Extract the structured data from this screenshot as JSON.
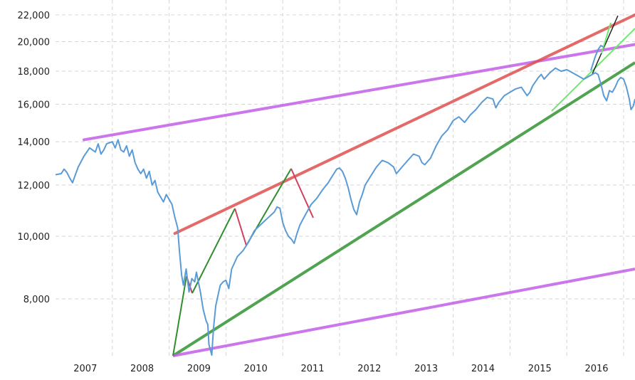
{
  "chart_data": {
    "type": "line",
    "title": "",
    "xlabel": "",
    "ylabel": "",
    "yscale": "log",
    "ylim": [
      6500,
      22500
    ],
    "xlim": [
      2006.5,
      2016.7
    ],
    "grid": true,
    "x_tick_labels": [
      "2007",
      "2008",
      "2009",
      "2010",
      "2011",
      "2012",
      "2013",
      "2014",
      "2015",
      "2016"
    ],
    "y_ticks": [
      8000,
      10000,
      12000,
      14000,
      16000,
      18000,
      20000,
      22000
    ],
    "y_tick_labels": [
      "8,000",
      "10,000",
      "12,000",
      "14,000",
      "16,000",
      "18,000",
      "20,000",
      "22,000"
    ],
    "colors": {
      "price": "#5b9bd5",
      "upper_trend": "#e05050",
      "channel": "#c25fe8",
      "support": "#3e9a3e",
      "swing_up": "#2f8f2f",
      "swing_down": "#d04060",
      "recent_trend": "#6ee86e",
      "grid": "#d6d6d6"
    },
    "series": [
      {
        "role": "price",
        "points": [
          [
            2006.5,
            12450
          ],
          [
            2006.6,
            12500
          ],
          [
            2006.65,
            12700
          ],
          [
            2006.7,
            12550
          ],
          [
            2006.75,
            12300
          ],
          [
            2006.8,
            12100
          ],
          [
            2006.85,
            12450
          ],
          [
            2006.9,
            12800
          ],
          [
            2007.0,
            13300
          ],
          [
            2007.1,
            13700
          ],
          [
            2007.2,
            13500
          ],
          [
            2007.25,
            13900
          ],
          [
            2007.3,
            13400
          ],
          [
            2007.35,
            13600
          ],
          [
            2007.4,
            13900
          ],
          [
            2007.5,
            14000
          ],
          [
            2007.55,
            13700
          ],
          [
            2007.6,
            14100
          ],
          [
            2007.65,
            13600
          ],
          [
            2007.7,
            13500
          ],
          [
            2007.75,
            13800
          ],
          [
            2007.8,
            13300
          ],
          [
            2007.85,
            13600
          ],
          [
            2007.9,
            13000
          ],
          [
            2007.95,
            12700
          ],
          [
            2008.0,
            12500
          ],
          [
            2008.05,
            12700
          ],
          [
            2008.1,
            12300
          ],
          [
            2008.15,
            12600
          ],
          [
            2008.2,
            12000
          ],
          [
            2008.25,
            12200
          ],
          [
            2008.3,
            11700
          ],
          [
            2008.35,
            11500
          ],
          [
            2008.4,
            11300
          ],
          [
            2008.45,
            11600
          ],
          [
            2008.5,
            11400
          ],
          [
            2008.55,
            11200
          ],
          [
            2008.6,
            10700
          ],
          [
            2008.65,
            10300
          ],
          [
            2008.68,
            9500
          ],
          [
            2008.72,
            8700
          ],
          [
            2008.75,
            8400
          ],
          [
            2008.8,
            8900
          ],
          [
            2008.85,
            8200
          ],
          [
            2008.9,
            8600
          ],
          [
            2008.95,
            8500
          ],
          [
            2008.98,
            8800
          ],
          [
            2009.05,
            8200
          ],
          [
            2009.1,
            7700
          ],
          [
            2009.15,
            7400
          ],
          [
            2009.18,
            7300
          ],
          [
            2009.2,
            6800
          ],
          [
            2009.25,
            6550
          ],
          [
            2009.28,
            7200
          ],
          [
            2009.32,
            7800
          ],
          [
            2009.36,
            8100
          ],
          [
            2009.4,
            8400
          ],
          [
            2009.45,
            8500
          ],
          [
            2009.5,
            8550
          ],
          [
            2009.55,
            8300
          ],
          [
            2009.6,
            8900
          ],
          [
            2009.7,
            9300
          ],
          [
            2009.8,
            9500
          ],
          [
            2009.9,
            9800
          ],
          [
            2010.0,
            10200
          ],
          [
            2010.1,
            10400
          ],
          [
            2010.2,
            10600
          ],
          [
            2010.25,
            10700
          ],
          [
            2010.3,
            10800
          ],
          [
            2010.35,
            10900
          ],
          [
            2010.4,
            11100
          ],
          [
            2010.45,
            11050
          ],
          [
            2010.5,
            10500
          ],
          [
            2010.55,
            10200
          ],
          [
            2010.6,
            10000
          ],
          [
            2010.65,
            9900
          ],
          [
            2010.7,
            9750
          ],
          [
            2010.75,
            10100
          ],
          [
            2010.8,
            10400
          ],
          [
            2010.85,
            10600
          ],
          [
            2010.9,
            10800
          ],
          [
            2010.95,
            11000
          ],
          [
            2011.0,
            11200
          ],
          [
            2011.1,
            11450
          ],
          [
            2011.2,
            11800
          ],
          [
            2011.3,
            12100
          ],
          [
            2011.35,
            12300
          ],
          [
            2011.4,
            12500
          ],
          [
            2011.45,
            12700
          ],
          [
            2011.5,
            12750
          ],
          [
            2011.55,
            12600
          ],
          [
            2011.6,
            12300
          ],
          [
            2011.65,
            11900
          ],
          [
            2011.7,
            11400
          ],
          [
            2011.75,
            11000
          ],
          [
            2011.8,
            10800
          ],
          [
            2011.85,
            11300
          ],
          [
            2011.9,
            11600
          ],
          [
            2011.95,
            12000
          ],
          [
            2012.05,
            12400
          ],
          [
            2012.15,
            12800
          ],
          [
            2012.25,
            13100
          ],
          [
            2012.35,
            13000
          ],
          [
            2012.45,
            12800
          ],
          [
            2012.5,
            12500
          ],
          [
            2012.6,
            12800
          ],
          [
            2012.7,
            13100
          ],
          [
            2012.8,
            13400
          ],
          [
            2012.9,
            13300
          ],
          [
            2012.95,
            13000
          ],
          [
            2013.0,
            12900
          ],
          [
            2013.1,
            13200
          ],
          [
            2013.2,
            13800
          ],
          [
            2013.3,
            14300
          ],
          [
            2013.4,
            14600
          ],
          [
            2013.5,
            15100
          ],
          [
            2013.6,
            15300
          ],
          [
            2013.7,
            15000
          ],
          [
            2013.8,
            15400
          ],
          [
            2013.9,
            15700
          ],
          [
            2014.0,
            16100
          ],
          [
            2014.1,
            16400
          ],
          [
            2014.2,
            16300
          ],
          [
            2014.25,
            15800
          ],
          [
            2014.3,
            16100
          ],
          [
            2014.4,
            16500
          ],
          [
            2014.5,
            16700
          ],
          [
            2014.6,
            16900
          ],
          [
            2014.7,
            17000
          ],
          [
            2014.8,
            16500
          ],
          [
            2014.85,
            16700
          ],
          [
            2014.9,
            17100
          ],
          [
            2015.0,
            17600
          ],
          [
            2015.05,
            17800
          ],
          [
            2015.1,
            17500
          ],
          [
            2015.2,
            17900
          ],
          [
            2015.3,
            18200
          ],
          [
            2015.4,
            18000
          ],
          [
            2015.5,
            18100
          ],
          [
            2015.6,
            17900
          ],
          [
            2015.7,
            17700
          ],
          [
            2015.8,
            17500
          ],
          [
            2015.9,
            17700
          ],
          [
            2016.0,
            17900
          ],
          [
            2016.05,
            17800
          ],
          [
            2016.1,
            17200
          ],
          [
            2016.15,
            16500
          ],
          [
            2016.2,
            16200
          ],
          [
            2016.25,
            16800
          ],
          [
            2016.3,
            16700
          ],
          [
            2016.35,
            17000
          ],
          [
            2016.4,
            17400
          ],
          [
            2016.45,
            17600
          ],
          [
            2016.5,
            17500
          ],
          [
            2016.55,
            17000
          ],
          [
            2016.6,
            16300
          ],
          [
            2016.63,
            15700
          ],
          [
            2016.67,
            15900
          ],
          [
            2016.7,
            16300
          ]
        ]
      }
    ],
    "annotation_lines": [
      {
        "role": "channel",
        "from": [
          2007.0,
          14100
        ],
        "to": [
          2016.7,
          19800
        ]
      },
      {
        "role": "upper_trend",
        "from": [
          2008.6,
          10100
        ],
        "to": [
          2016.7,
          22000
        ]
      }
    ]
  }
}
